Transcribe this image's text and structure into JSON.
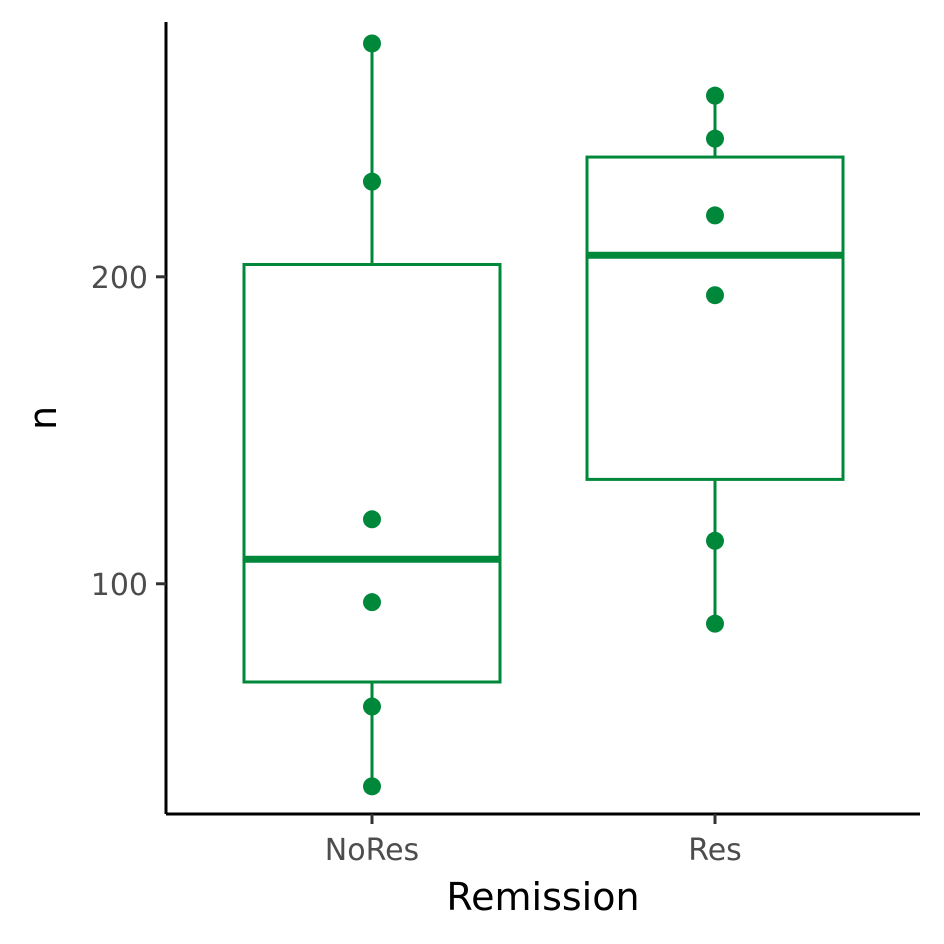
{
  "chart_data": {
    "type": "box",
    "xlabel": "Remission",
    "ylabel": "n",
    "categories": [
      "NoRes",
      "Res"
    ],
    "ylim": [
      25,
      283
    ],
    "y_ticks": [
      100,
      200
    ],
    "color": "#00883a",
    "grid": false,
    "legend": "none",
    "boxes": [
      {
        "category": "NoRes",
        "min": 34,
        "q1": 68,
        "median": 108,
        "q3": 204,
        "max": 276,
        "points": [
          276,
          231,
          121,
          94,
          60,
          34
        ]
      },
      {
        "category": "Res",
        "min": 87,
        "q1": 134,
        "median": 207,
        "q3": 239,
        "max": 259,
        "points": [
          259,
          245,
          220,
          194,
          114,
          87
        ]
      }
    ]
  }
}
